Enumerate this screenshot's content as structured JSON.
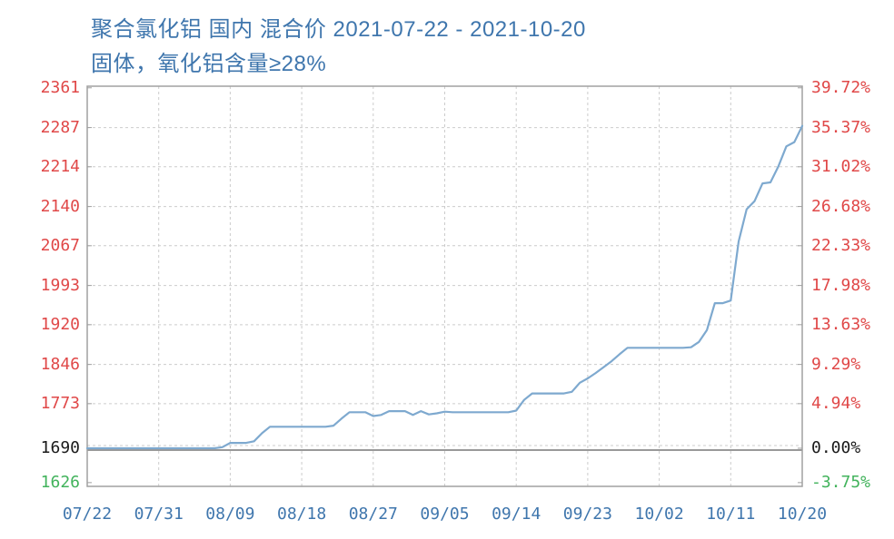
{
  "title": {
    "line1": "聚合氯化铝 国内 混合价 2021-07-22 - 2021-10-20",
    "line2": "固体，氧化铝含量≥28%"
  },
  "colors": {
    "title_blue": "#3f76ad",
    "axis_red": "#e04848",
    "axis_black": "#1a1a1a",
    "axis_green": "#42b35c",
    "line_blue": "#7ea9cf",
    "grid_gray": "#cccccc",
    "zero_line_gray": "#999999",
    "border_gray": "#a0a0a0"
  },
  "chart_data": {
    "type": "line",
    "title": "聚合氯化铝 国内 混合价 2021-07-22 - 2021-10-20",
    "subtitle": "固体，氧化铝含量≥28%",
    "grid": true,
    "legend_position": "none",
    "ylim": [
      1619,
      2364
    ],
    "baseline_value": 1690,
    "left_axis_ticks": [
      {
        "label": "2361",
        "value": 2361,
        "color": "red"
      },
      {
        "label": "2287",
        "value": 2287,
        "color": "red"
      },
      {
        "label": "2214",
        "value": 2214,
        "color": "red"
      },
      {
        "label": "2140",
        "value": 2140,
        "color": "red"
      },
      {
        "label": "2067",
        "value": 2067,
        "color": "red"
      },
      {
        "label": "1993",
        "value": 1993,
        "color": "red"
      },
      {
        "label": "1920",
        "value": 1920,
        "color": "red"
      },
      {
        "label": "1846",
        "value": 1846,
        "color": "red"
      },
      {
        "label": "1773",
        "value": 1773,
        "color": "red"
      },
      {
        "label": "1690",
        "value": 1690,
        "color": "black"
      },
      {
        "label": "1626",
        "value": 1626,
        "color": "green"
      }
    ],
    "right_axis_ticks": [
      {
        "label": "39.72%",
        "value": 2361,
        "color": "red"
      },
      {
        "label": "35.37%",
        "value": 2287,
        "color": "red"
      },
      {
        "label": "31.02%",
        "value": 2214,
        "color": "red"
      },
      {
        "label": "26.68%",
        "value": 2140,
        "color": "red"
      },
      {
        "label": "22.33%",
        "value": 2067,
        "color": "red"
      },
      {
        "label": "17.98%",
        "value": 1993,
        "color": "red"
      },
      {
        "label": "13.63%",
        "value": 1920,
        "color": "red"
      },
      {
        "label": "9.29%",
        "value": 1846,
        "color": "red"
      },
      {
        "label": "4.94%",
        "value": 1773,
        "color": "red"
      },
      {
        "label": "0.00%",
        "value": 1690,
        "color": "black"
      },
      {
        "label": "-3.75%",
        "value": 1626,
        "color": "green"
      }
    ],
    "x_tick_labels": [
      "07/22",
      "07/31",
      "08/09",
      "08/18",
      "08/27",
      "09/05",
      "09/14",
      "09/23",
      "10/02",
      "10/11",
      "10/20"
    ],
    "x_tick_interval_days": 9,
    "series": [
      {
        "name": "混合价",
        "color": "#7ea9cf",
        "dates": [
          "07/22",
          "07/23",
          "07/24",
          "07/25",
          "07/26",
          "07/27",
          "07/28",
          "07/29",
          "07/30",
          "07/31",
          "08/01",
          "08/02",
          "08/03",
          "08/04",
          "08/05",
          "08/06",
          "08/07",
          "08/08",
          "08/09",
          "08/10",
          "08/11",
          "08/12",
          "08/13",
          "08/14",
          "08/15",
          "08/16",
          "08/17",
          "08/18",
          "08/19",
          "08/20",
          "08/21",
          "08/22",
          "08/23",
          "08/24",
          "08/25",
          "08/26",
          "08/27",
          "08/28",
          "08/29",
          "08/30",
          "08/31",
          "09/01",
          "09/02",
          "09/03",
          "09/04",
          "09/05",
          "09/06",
          "09/07",
          "09/08",
          "09/09",
          "09/10",
          "09/11",
          "09/12",
          "09/13",
          "09/14",
          "09/15",
          "09/16",
          "09/17",
          "09/18",
          "09/19",
          "09/20",
          "09/21",
          "09/22",
          "09/23",
          "09/24",
          "09/25",
          "09/26",
          "09/27",
          "09/28",
          "09/29",
          "09/30",
          "10/01",
          "10/02",
          "10/03",
          "10/04",
          "10/05",
          "10/06",
          "10/07",
          "10/08",
          "10/09",
          "10/10",
          "10/11",
          "10/12",
          "10/13",
          "10/14",
          "10/15",
          "10/16",
          "10/17",
          "10/18",
          "10/19",
          "10/20"
        ],
        "values": [
          1690,
          1690,
          1690,
          1690,
          1690,
          1690,
          1690,
          1690,
          1690,
          1690,
          1690,
          1690,
          1690,
          1690,
          1690,
          1690,
          1690,
          1692,
          1700,
          1700,
          1700,
          1703,
          1718,
          1730,
          1730,
          1730,
          1730,
          1730,
          1730,
          1730,
          1730,
          1732,
          1745,
          1757,
          1757,
          1757,
          1750,
          1752,
          1759,
          1759,
          1759,
          1752,
          1759,
          1753,
          1755,
          1758,
          1757,
          1757,
          1757,
          1757,
          1757,
          1757,
          1757,
          1757,
          1760,
          1780,
          1792,
          1792,
          1792,
          1792,
          1792,
          1795,
          1812,
          1820,
          1830,
          1841,
          1852,
          1865,
          1877,
          1877,
          1877,
          1877,
          1877,
          1877,
          1877,
          1877,
          1878,
          1888,
          1910,
          1960,
          1960,
          1965,
          2075,
          2135,
          2150,
          2183,
          2185,
          2215,
          2252,
          2260,
          2290
        ]
      }
    ]
  }
}
